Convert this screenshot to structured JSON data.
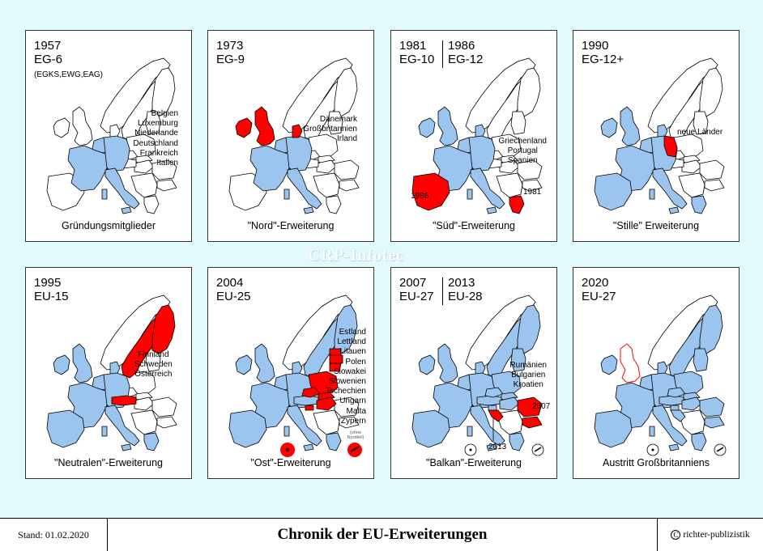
{
  "colors": {
    "member": "#9bc4ef",
    "new": "#ff0000",
    "outline": "#000000",
    "background": "#e3fafd"
  },
  "panels": [
    {
      "year": "1957",
      "label": "EG-6",
      "sub": "(EGKS,EWG,EAG)",
      "countries": [
        "Belgien",
        "Luxemburg",
        "Niederlande",
        "Deutschland",
        "Frankreich",
        "Italien"
      ],
      "caption": "Gründungsmitglieder"
    },
    {
      "year": "1973",
      "label": "EG-9",
      "countries": [
        "Dänemark",
        "Großbritannien",
        "Irland"
      ],
      "caption": "\"Nord\"-Erweiterung"
    },
    {
      "year": "1981",
      "label": "EG-10",
      "year_b": "1986",
      "label_b": "EG-12",
      "countries": [
        "Griechenland",
        "Portugal",
        "Spanien"
      ],
      "annotations": [
        "1986",
        "1981"
      ],
      "caption": "\"Süd\"-Erweiterung"
    },
    {
      "year": "1990",
      "label": "EG-12+",
      "countries": [
        "neue Länder"
      ],
      "caption": "\"Stille\" Erweiterung"
    },
    {
      "year": "1995",
      "label": "EU-15",
      "countries": [
        "Finnland",
        "Schweden",
        "Österreich"
      ],
      "caption": "\"Neutralen\"-Erweiterung"
    },
    {
      "year": "2004",
      "label": "EU-25",
      "countries": [
        "Estland",
        "Lettland",
        "Litauen",
        "Polen",
        "Slowakei",
        "Slowenien",
        "Tschechien",
        "Ungarn",
        "Malta",
        "Zypern"
      ],
      "note": "(ohne Nordteil)",
      "caption": "\"Ost\"-Erweiterung"
    },
    {
      "year": "2007",
      "label": "EU-27",
      "year_b": "2013",
      "label_b": "EU-28",
      "countries": [
        "Rumänien",
        "Bulgarien",
        "Kroatien"
      ],
      "annotations": [
        "2007",
        "2013"
      ],
      "caption": "\"Balkan\"-Erweiterung"
    },
    {
      "year": "2020",
      "label": "EU-27",
      "caption": "Austritt Großbritanniens"
    }
  ],
  "watermark": "CRP-Infotec",
  "footer": {
    "stand": "Stand: 01.02.2020",
    "title": "Chronik der EU-Erweiterungen",
    "copyright": "richter-publizistik",
    "copyright_symbol": "C"
  }
}
